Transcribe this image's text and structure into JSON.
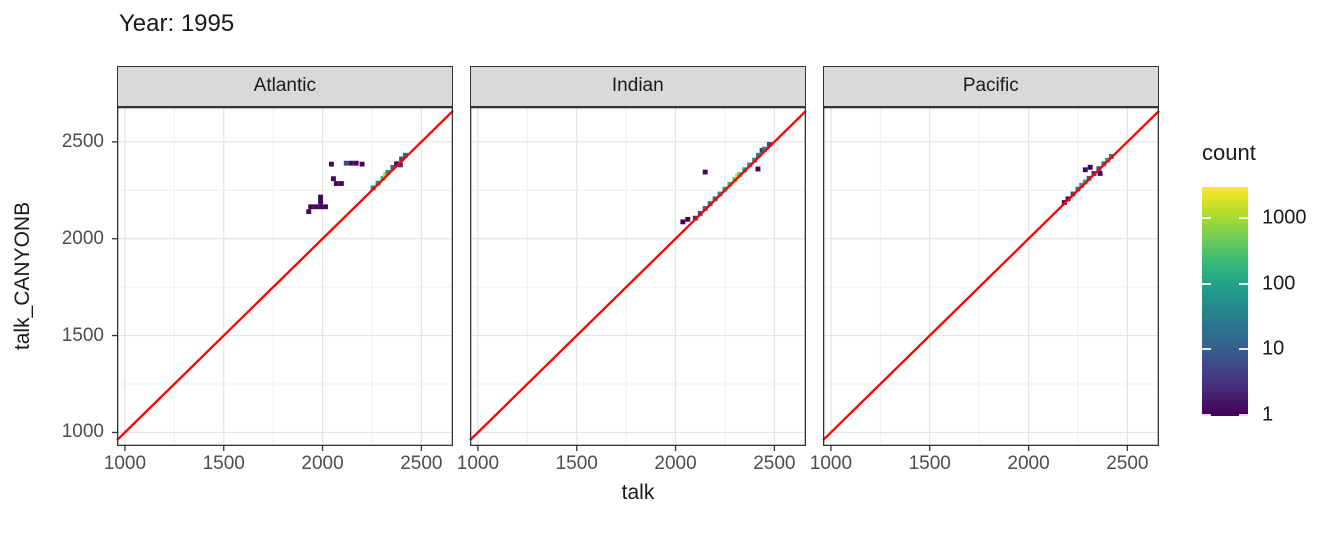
{
  "title": "Year: 1995",
  "axis": {
    "x_label": "talk",
    "y_label": "talk_CANYONB",
    "x_ticks": [
      1000,
      1500,
      2000,
      2500
    ],
    "y_ticks": [
      1000,
      1500,
      2000,
      2500
    ],
    "minor_x": [
      1250,
      1750,
      2250
    ],
    "minor_y": [
      1250,
      1750,
      2250
    ]
  },
  "reference_line": {
    "equation": "y = x",
    "color": "#ff0000"
  },
  "chart_data": {
    "type": "heatmap",
    "subtype": "bin2d",
    "title": "Year: 1995",
    "xlabel": "talk",
    "ylabel": "talk_CANYONB",
    "x_range": [
      960,
      2660
    ],
    "y_range": [
      930,
      2680
    ],
    "bin_width": 25,
    "legend_scale": "log10 count, 1 to ~3000",
    "facets": [
      {
        "label": "Atlantic",
        "bins": [
          [
            2256,
            2262,
            20,
            "#287c8e"
          ],
          [
            2281,
            2287,
            45,
            "#21918c"
          ],
          [
            2306,
            2312,
            300,
            "#35b779"
          ],
          [
            2319,
            2331,
            1500,
            "#b5de2b"
          ],
          [
            2331,
            2343,
            60,
            "#21918c"
          ],
          [
            2356,
            2368,
            10,
            "#31688e"
          ],
          [
            2375,
            2387,
            2,
            "#46085c"
          ],
          [
            2394,
            2381,
            3,
            "#46327e"
          ],
          [
            2400,
            2412,
            6,
            "#3d4e8a"
          ],
          [
            2419,
            2431,
            10,
            "#31688e"
          ],
          [
            2045,
            2385,
            1,
            "#46085c"
          ],
          [
            2120,
            2390,
            4,
            "#3d4e8a"
          ],
          [
            2145,
            2390,
            2,
            "#46085c"
          ],
          [
            2170,
            2390,
            1,
            "#46085c"
          ],
          [
            2200,
            2385,
            1,
            "#46085c"
          ],
          [
            2055,
            2310,
            1,
            "#46085c"
          ],
          [
            2070,
            2285,
            1,
            "#46085c"
          ],
          [
            2095,
            2285,
            1,
            "#46085c"
          ],
          [
            1990,
            2215,
            1,
            "#46085c"
          ],
          [
            1990,
            2190,
            1,
            "#46085c"
          ],
          [
            1940,
            2165,
            1,
            "#46085c"
          ],
          [
            1965,
            2165,
            1,
            "#46085c"
          ],
          [
            1990,
            2165,
            1,
            "#46085c"
          ],
          [
            2015,
            2165,
            1,
            "#46085c"
          ],
          [
            1930,
            2140,
            1,
            "#46085c"
          ]
        ]
      },
      {
        "label": "Indian",
        "bins": [
          [
            2037,
            2087,
            1,
            "#440154"
          ],
          [
            2062,
            2100,
            1,
            "#46085c"
          ],
          [
            2100,
            2106,
            3,
            "#46327e"
          ],
          [
            2125,
            2131,
            6,
            "#3d4e8a"
          ],
          [
            2150,
            2156,
            10,
            "#31688e"
          ],
          [
            2175,
            2181,
            14,
            "#2c6b8e"
          ],
          [
            2200,
            2206,
            25,
            "#287c8e"
          ],
          [
            2225,
            2231,
            50,
            "#21918c"
          ],
          [
            2250,
            2256,
            100,
            "#1fa187"
          ],
          [
            2275,
            2281,
            250,
            "#35b779"
          ],
          [
            2300,
            2306,
            600,
            "#5ec962"
          ],
          [
            2313,
            2322,
            2000,
            "#d2e21b"
          ],
          [
            2325,
            2331,
            350,
            "#44bf70"
          ],
          [
            2350,
            2356,
            120,
            "#1fa187"
          ],
          [
            2375,
            2381,
            50,
            "#21918c"
          ],
          [
            2400,
            2406,
            40,
            "#21918c"
          ],
          [
            2419,
            2431,
            25,
            "#26828e"
          ],
          [
            2438,
            2456,
            3,
            "#46327e"
          ],
          [
            2450,
            2462,
            20,
            "#287c8e"
          ],
          [
            2475,
            2487,
            8,
            "#3d4e8a"
          ],
          [
            2150,
            2344,
            1,
            "#46085c"
          ],
          [
            2417,
            2360,
            1,
            "#46085c"
          ]
        ]
      },
      {
        "label": "Pacific",
        "bins": [
          [
            2181,
            2187,
            1,
            "#46085c"
          ],
          [
            2200,
            2206,
            2,
            "#46085c"
          ],
          [
            2225,
            2231,
            6,
            "#3d4e8a"
          ],
          [
            2250,
            2256,
            12,
            "#2f6c8e"
          ],
          [
            2269,
            2275,
            40,
            "#21918c"
          ],
          [
            2287,
            2293,
            120,
            "#2ab07f"
          ],
          [
            2306,
            2312,
            10,
            "#31688e"
          ],
          [
            2331,
            2337,
            3,
            "#46327e"
          ],
          [
            2356,
            2362,
            8,
            "#365c8d"
          ],
          [
            2381,
            2387,
            20,
            "#287c8e"
          ],
          [
            2400,
            2406,
            80,
            "#1fa187"
          ],
          [
            2419,
            2425,
            25,
            "#26828e"
          ],
          [
            2287,
            2356,
            1,
            "#46085c"
          ],
          [
            2312,
            2369,
            1,
            "#440154"
          ],
          [
            2362,
            2337,
            1,
            "#46085c"
          ]
        ]
      }
    ]
  },
  "legend": {
    "title": "count",
    "ticks": [
      {
        "label": "1000",
        "pos": 0.135
      },
      {
        "label": "100",
        "pos": 0.424
      },
      {
        "label": "10",
        "pos": 0.707
      },
      {
        "label": "1",
        "pos": 0.995
      }
    ],
    "gradient_top_to_bottom": [
      "#fde725",
      "#b5de2b",
      "#6ece58",
      "#35b779",
      "#1f9e89",
      "#26828e",
      "#31688e",
      "#3e4a89",
      "#482878",
      "#440154"
    ]
  },
  "colors": {
    "strip_fill": "#d9d9d9",
    "panel_border": "#333333",
    "grid_major": "#e4e4e4",
    "grid_minor": "#f0f0f0",
    "tick_text": "#4d4d4d",
    "reference_line": "#ff0000"
  }
}
